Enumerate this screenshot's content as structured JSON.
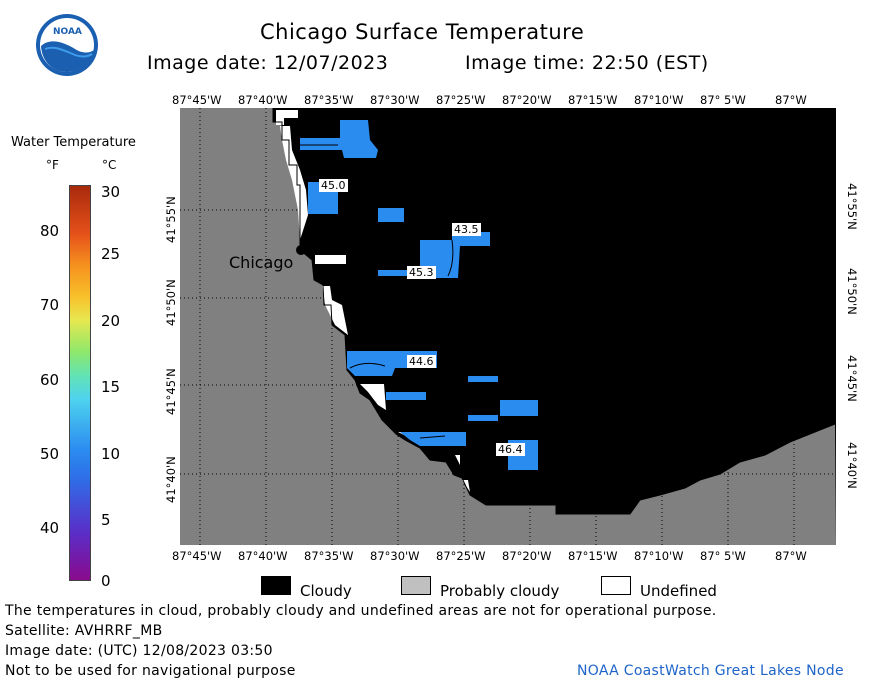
{
  "header": {
    "title": "Chicago Surface Temperature",
    "image_date_label": "Image date: 12/07/2023",
    "image_time_label": "Image time: 22:50 (EST)",
    "logo_text": "NOAA"
  },
  "scale": {
    "title": "Water Temperature",
    "f_unit": "°F",
    "c_unit": "°C",
    "f_ticks": [
      "80",
      "70",
      "60",
      "50",
      "40"
    ],
    "c_ticks": [
      "30",
      "25",
      "20",
      "15",
      "10",
      "5",
      "0"
    ]
  },
  "map": {
    "lon_labels": [
      "87°45'W",
      "87°40'W",
      "87°35'W",
      "87°30'W",
      "87°25'W",
      "87°20'W",
      "87°15'W",
      "87°10'W",
      "87° 5'W",
      "87°W"
    ],
    "lat_labels": [
      "41°55'N",
      "41°50'N",
      "41°45'N",
      "41°40'N"
    ],
    "city_label": "Chicago",
    "temps": [
      "45.0",
      "43.5",
      "45.3",
      "44.6",
      "46.4"
    ]
  },
  "legend": {
    "cloudy": "Cloudy",
    "probably_cloudy": "Probably cloudy",
    "undefined": "Undefined"
  },
  "footer": {
    "disclaimer": "The temperatures in cloud, probably cloudy and undefined areas are not for operational purpose.",
    "satellite": "Satellite: AVHRRF_MB",
    "utc_date": "Image date: (UTC) 12/08/2023  03:50",
    "nav_warning": "Not to be used for navigational purpose",
    "node": "NOAA CoastWatch Great Lakes Node"
  },
  "colors": {
    "land": "#808080",
    "cloudy": "#000000",
    "probably_cloudy": "#c0c0c0",
    "undefined": "#ffffff",
    "water_warm": "#2b8cf0"
  }
}
